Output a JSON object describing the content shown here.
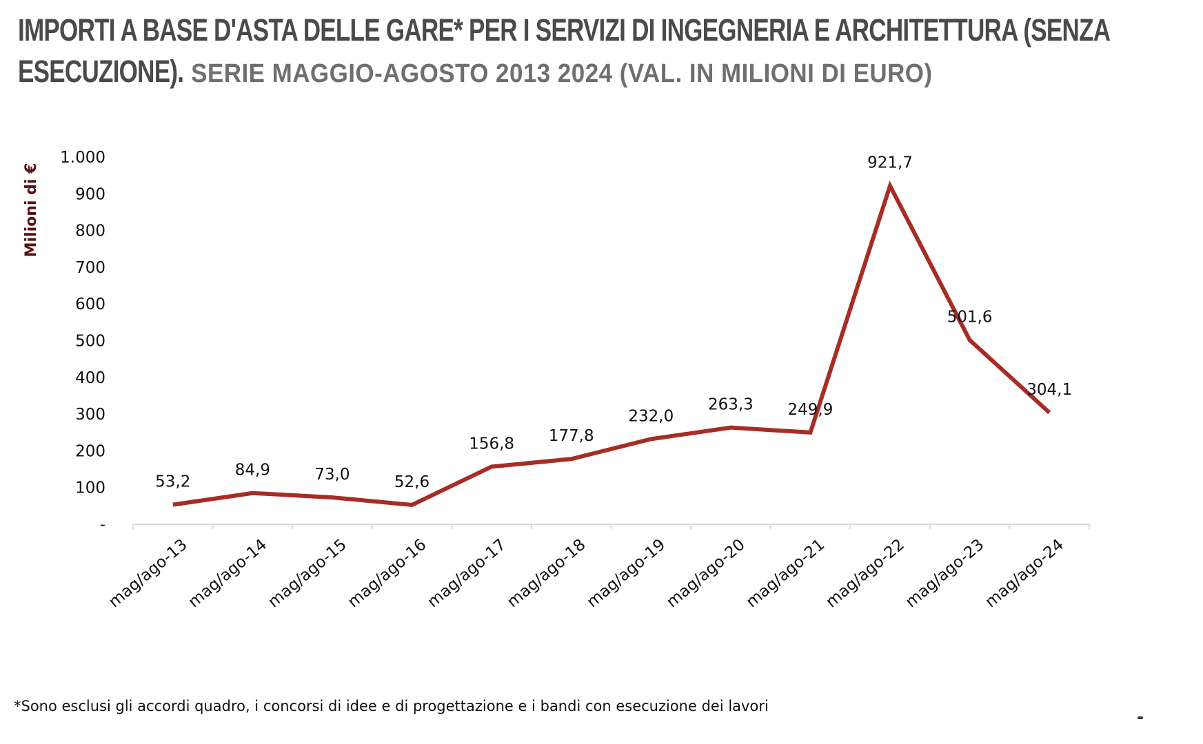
{
  "header": {
    "title_line1": "IMPORTI A BASE D'ASTA DELLE GARE* PER I SERVIZI DI INGEGNERIA E ARCHITETTURA (SENZA",
    "title_line2": "ESECUZIONE).",
    "subtitle": "SERIE MAGGIO-AGOSTO 2013 2024 (VAL. IN MILIONI DI EURO)"
  },
  "footnote": "*Sono esclusi gli accordi quadro, i concorsi di idee e di progettazione e i bandi con esecuzione dei lavori",
  "colors": {
    "line": "#a62d26",
    "axis_text": "#111111",
    "ylabel": "#5a1010",
    "axis_line": "#d9d9d9"
  },
  "chart_data": {
    "type": "line",
    "categories": [
      "mag/ago-13",
      "mag/ago-14",
      "mag/ago-15",
      "mag/ago-16",
      "mag/ago-17",
      "mag/ago-18",
      "mag/ago-19",
      "mag/ago-20",
      "mag/ago-21",
      "mag/ago-22",
      "mag/ago-23",
      "mag/ago-24"
    ],
    "series": [
      {
        "values": [
          53.2,
          84.9,
          73.0,
          52.6,
          156.8,
          177.8,
          232.0,
          263.3,
          249.9,
          921.7,
          501.6,
          304.1
        ],
        "data_labels": [
          "53,2",
          "84,9",
          "73,0",
          "52,6",
          "156,8",
          "177,8",
          "232,0",
          "263,3",
          "249,9",
          "921,7",
          "501,6",
          "304,1"
        ]
      }
    ],
    "ylabel": "Milioni di €",
    "xlabel": "",
    "ylim": [
      0,
      1000
    ],
    "yticks": [
      0,
      100,
      200,
      300,
      400,
      500,
      600,
      700,
      800,
      900,
      1000
    ],
    "ytick_labels": [
      "-",
      "100",
      "200",
      "300",
      "400",
      "500",
      "600",
      "700",
      "800",
      "900",
      "1.000"
    ],
    "grid": false,
    "legend": "none"
  }
}
